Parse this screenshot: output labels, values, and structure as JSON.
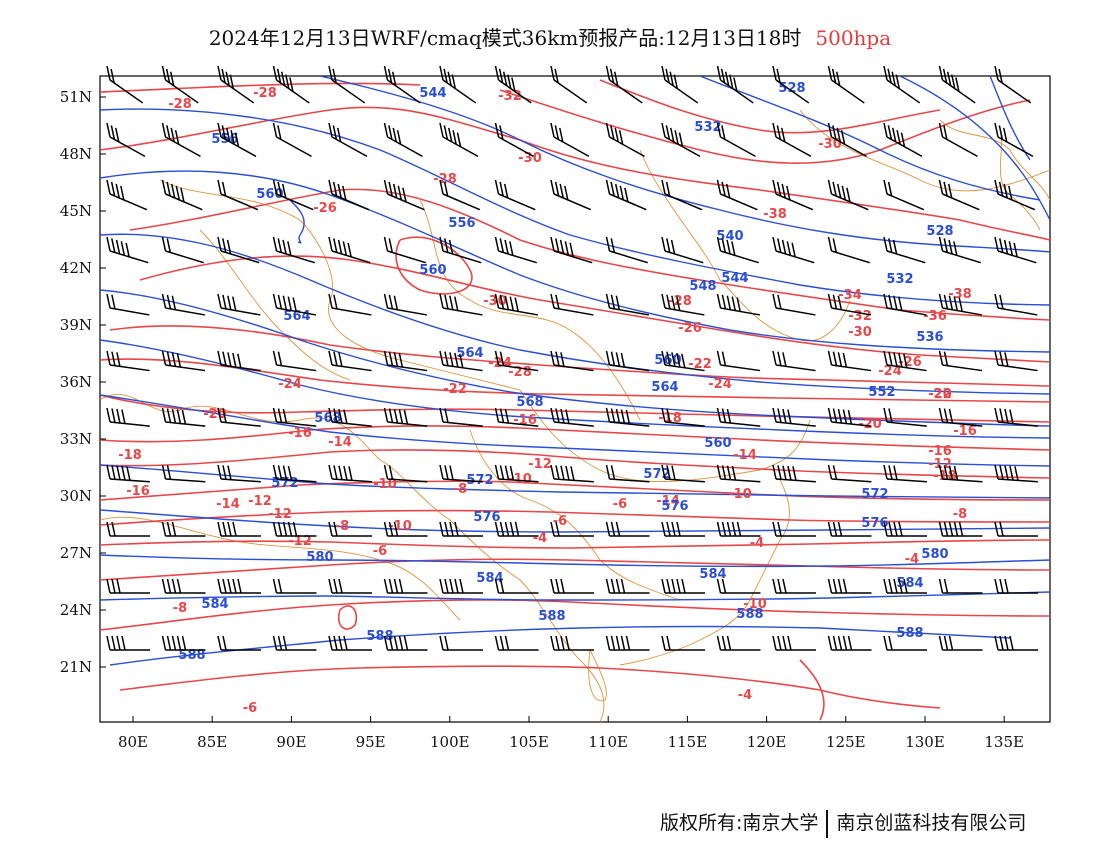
{
  "title": {
    "main": "2024年12月13日WRF/cmaq模式36km预报产品:12月13日18时",
    "level": "500hpa",
    "level_color": "#e83a3a"
  },
  "axes": {
    "lat_labels": [
      "51N",
      "48N",
      "45N",
      "42N",
      "39N",
      "36N",
      "33N",
      "30N",
      "27N",
      "24N",
      "21N"
    ],
    "lon_labels": [
      "80E",
      "85E",
      "90E",
      "95E",
      "100E",
      "105E",
      "110E",
      "115E",
      "120E",
      "125E",
      "130E",
      "135E"
    ]
  },
  "contours": {
    "temperature_color": "#e8474a",
    "height_color": "#2a4fd6",
    "border_color": "#e0943c",
    "temperature_labels": [
      "-28",
      "-28",
      "-32",
      "-30",
      "-28",
      "-26",
      "-30",
      "-38",
      "-24",
      "-28",
      "-30",
      "-28",
      "-26",
      "-34",
      "-32",
      "-30",
      "-36",
      "-38",
      "-24",
      "-22",
      "-24",
      "-22",
      "-20",
      "-20",
      "-18",
      "-16",
      "-16",
      "-14",
      "-18",
      "-16",
      "-14",
      "-12",
      "-10",
      "-14",
      "-12",
      "-16",
      "-12",
      "-10",
      "-8",
      "-6",
      "-10",
      "-8",
      "-12",
      "-10",
      "-8",
      "-6",
      "-4",
      "-4",
      "-6",
      "-4",
      "-4",
      "-6",
      "-8",
      "-10",
      "-12",
      "-14",
      "-16",
      "-18",
      "-20",
      "-22",
      "-24",
      "-26"
    ],
    "height_labels": [
      "544",
      "528",
      "532",
      "556",
      "560",
      "556",
      "540",
      "528",
      "560",
      "548",
      "544",
      "532",
      "536",
      "564",
      "564",
      "560",
      "564",
      "552",
      "568",
      "568",
      "560",
      "572",
      "572",
      "572",
      "572",
      "576",
      "576",
      "576",
      "580",
      "580",
      "584",
      "584",
      "584",
      "584",
      "588",
      "588",
      "588",
      "588",
      "588"
    ]
  },
  "footer": {
    "left": "版权所有:南京大学",
    "right": "南京创蓝科技有限公司"
  }
}
